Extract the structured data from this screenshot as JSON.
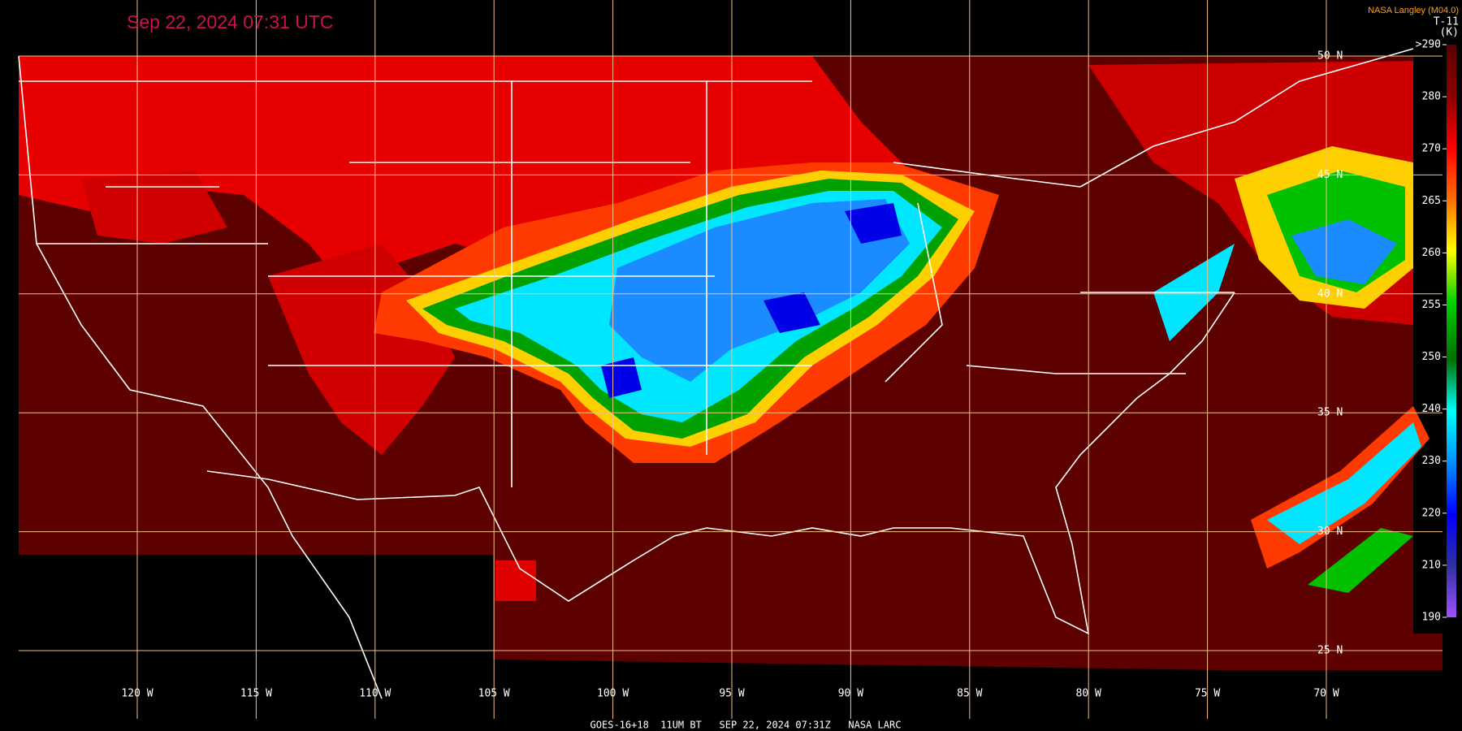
{
  "header": {
    "title": "Sep 22, 2024 07:31 UTC",
    "credit": "NASA Langley (M04.0)",
    "band": "T-11",
    "unit": "(K)"
  },
  "footer": "GOES-16+18  11UM BT   SEP 22, 2024 07:31Z   NASA LARC",
  "longitudes": [
    {
      "value": 120,
      "label": "120 W"
    },
    {
      "value": 115,
      "label": "115 W"
    },
    {
      "value": 110,
      "label": "110 W"
    },
    {
      "value": 105,
      "label": "105 W"
    },
    {
      "value": 100,
      "label": "100 W"
    },
    {
      "value": 95,
      "label": "95 W"
    },
    {
      "value": 90,
      "label": "90 W"
    },
    {
      "value": 85,
      "label": "85 W"
    },
    {
      "value": 80,
      "label": "80 W"
    },
    {
      "value": 75,
      "label": "75 W"
    },
    {
      "value": 70,
      "label": "70 W"
    }
  ],
  "latitudes": [
    {
      "value": 50,
      "label": "50 N"
    },
    {
      "value": 45,
      "label": "45 N"
    },
    {
      "value": 40,
      "label": "40 N"
    },
    {
      "value": 35,
      "label": "35 N"
    },
    {
      "value": 30,
      "label": "30 N"
    },
    {
      "value": 25,
      "label": "25 N"
    }
  ],
  "colorbar": [
    {
      "value": 290,
      "label": ">290"
    },
    280,
    270,
    265,
    260,
    255,
    250,
    240,
    230,
    220,
    210,
    190
  ]
}
